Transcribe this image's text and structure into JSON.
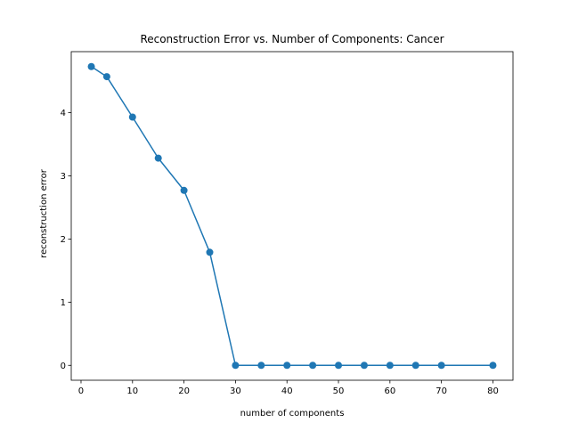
{
  "chart_data": {
    "type": "line",
    "title": "Reconstruction Error vs. Number of Components: Cancer",
    "xlabel": "number of components",
    "ylabel": "reconstruction error",
    "xlim": [
      -1.9,
      83.9
    ],
    "ylim": [
      -0.236,
      4.966
    ],
    "x_ticks": [
      0,
      10,
      20,
      30,
      40,
      50,
      60,
      70,
      80
    ],
    "y_ticks": [
      0,
      1,
      2,
      3,
      4
    ],
    "grid": false,
    "legend": "none",
    "series": [
      {
        "color": "#1f77b4",
        "marker": "circle",
        "x": [
          2,
          5,
          10,
          15,
          20,
          25,
          30,
          35,
          40,
          45,
          50,
          55,
          60,
          65,
          70,
          80
        ],
        "y": [
          4.73,
          4.57,
          3.93,
          3.28,
          2.77,
          1.79,
          0,
          0,
          0,
          0,
          0,
          0,
          0,
          0,
          0,
          0
        ]
      }
    ]
  }
}
